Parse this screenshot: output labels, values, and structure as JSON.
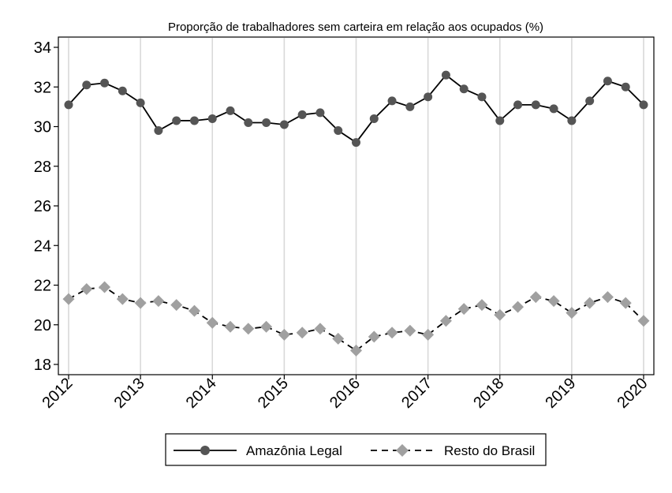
{
  "chart_data": {
    "type": "line",
    "title": "Proporção de trabalhadores sem carteira em relação aos ocupados (%)",
    "xlabel": "",
    "ylabel": "",
    "xlim": [
      2012,
      2020
    ],
    "ylim": [
      18,
      34
    ],
    "x_ticks": [
      "2012",
      "2013",
      "2014",
      "2015",
      "2016",
      "2017",
      "2018",
      "2019",
      "2020"
    ],
    "y_ticks": [
      "18",
      "20",
      "22",
      "24",
      "26",
      "28",
      "30",
      "32",
      "34"
    ],
    "grid": "vertical",
    "legend_position": "bottom",
    "x": [
      2012.0,
      2012.25,
      2012.5,
      2012.75,
      2013.0,
      2013.25,
      2013.5,
      2013.75,
      2014.0,
      2014.25,
      2014.5,
      2014.75,
      2015.0,
      2015.25,
      2015.5,
      2015.75,
      2016.0,
      2016.25,
      2016.5,
      2016.75,
      2017.0,
      2017.25,
      2017.5,
      2017.75,
      2018.0,
      2018.25,
      2018.5,
      2018.75,
      2019.0,
      2019.25,
      2019.5,
      2019.75,
      2020.0
    ],
    "series": [
      {
        "name": "Amazônia Legal",
        "color": "#555555",
        "line_color": "#000000",
        "marker": "circle",
        "line_style": "solid",
        "values": [
          31.1,
          32.1,
          32.2,
          31.8,
          31.2,
          29.8,
          30.3,
          30.3,
          30.4,
          30.8,
          30.2,
          30.2,
          30.1,
          30.6,
          30.7,
          29.8,
          29.2,
          30.4,
          31.3,
          31.0,
          31.5,
          32.6,
          31.9,
          31.5,
          30.3,
          31.1,
          31.1,
          30.9,
          30.3,
          31.3,
          32.3,
          32.0,
          31.1
        ]
      },
      {
        "name": "Resto do Brasil",
        "color": "#a0a0a0",
        "line_color": "#000000",
        "marker": "diamond",
        "line_style": "dashed",
        "values": [
          21.3,
          21.8,
          21.9,
          21.3,
          21.1,
          21.2,
          21.0,
          20.7,
          20.1,
          19.9,
          19.8,
          19.9,
          19.5,
          19.6,
          19.8,
          19.3,
          18.7,
          19.4,
          19.6,
          19.7,
          19.5,
          20.2,
          20.8,
          21.0,
          20.5,
          20.9,
          21.4,
          21.2,
          20.6,
          21.1,
          21.4,
          21.1,
          20.2
        ]
      }
    ]
  }
}
